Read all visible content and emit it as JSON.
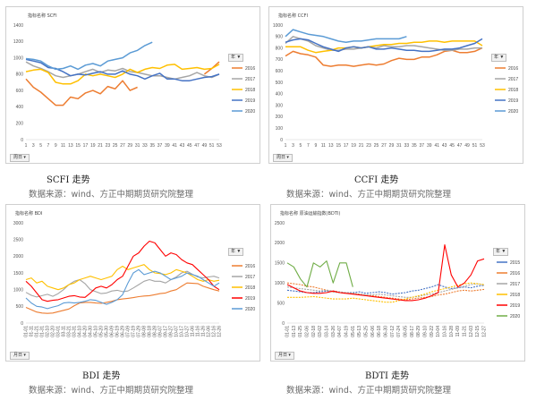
{
  "colors": {
    "2016": "#ed7d31",
    "2017": "#a5a5a5",
    "2018": "#ffc000",
    "2019": "#4472c4",
    "2020": "#5b9bd5",
    "2015": "#4472c4",
    "2020_bdti": "#70ad47",
    "2019_bdti": "#ff0000",
    "2019_bdi": "#ff0000"
  },
  "panels": [
    {
      "title": "指标名称 SCFI",
      "caption": "SCFI 走势",
      "source": "数据来源：wind、方正中期期货研究院整理",
      "period_label": "周日",
      "filter_label": "年",
      "yticks": [
        "1400",
        "1200",
        "1000",
        "800",
        "600",
        "400",
        "200",
        "0"
      ],
      "xticks": [
        "1",
        "3",
        "5",
        "7",
        "9",
        "11",
        "13",
        "15",
        "17",
        "19",
        "21",
        "23",
        "25",
        "27",
        "29",
        "31",
        "33",
        "35",
        "37",
        "39",
        "41",
        "43",
        "45",
        "47",
        "49",
        "51",
        "53"
      ],
      "legend": [
        "2016",
        "2017",
        "2018",
        "2019",
        "2020"
      ]
    },
    {
      "title": "指标名称 CCFI",
      "caption": "CCFI 走势",
      "source": "数据来源：wind、方正中期期货研究院整理",
      "period_label": "周日",
      "filter_label": "年",
      "yticks": [
        "1000",
        "900",
        "800",
        "700",
        "600",
        "500",
        "400",
        "300",
        "200",
        "100",
        "0"
      ],
      "xticks": [
        "1",
        "3",
        "5",
        "7",
        "9",
        "11",
        "13",
        "15",
        "17",
        "19",
        "21",
        "23",
        "25",
        "27",
        "29",
        "31",
        "33",
        "35",
        "37",
        "39",
        "41",
        "43",
        "45",
        "47",
        "49",
        "51",
        "53"
      ],
      "legend": [
        "2016",
        "2017",
        "2018",
        "2019",
        "2020"
      ]
    },
    {
      "title": "指标名称 BDI",
      "caption": "BDI 走势",
      "source": "数据来源：wind、方正中期期货研究院整理",
      "period_label": "月日",
      "filter_label": "年",
      "yticks": [
        "3000",
        "2500",
        "2000",
        "1500",
        "1000",
        "500",
        "0"
      ],
      "xticks": [
        "01-01",
        "01-11",
        "01-21",
        "01-31",
        "02-10",
        "02-20",
        "03-01",
        "03-11",
        "03-21",
        "03-31",
        "04-10",
        "04-20",
        "04-30",
        "05-10",
        "05-20",
        "05-30",
        "06-09",
        "06-19",
        "06-29",
        "07-09",
        "07-19",
        "07-29",
        "08-08",
        "08-18",
        "08-28",
        "09-07",
        "09-17",
        "09-27",
        "10-07",
        "10-17",
        "10-27",
        "11-06",
        "11-16",
        "11-26",
        "12-06",
        "12-16",
        "12-26"
      ],
      "legend": [
        "2016",
        "2017",
        "2018",
        "2019",
        "2020"
      ]
    },
    {
      "title": "指标名称 原油运输指数(BDTI)",
      "caption": "BDTI 走势",
      "source": "数据来源：wind、方正中期期货研究院整理",
      "period_label": "月日",
      "filter_label": "年",
      "yticks": [
        "2500",
        "2000",
        "1500",
        "1000",
        "500",
        "0"
      ],
      "xticks": [
        "01-01",
        "01-13",
        "01-25",
        "02-06",
        "02-18",
        "03-02",
        "03-14",
        "03-26",
        "04-07",
        "04-19",
        "05-01",
        "05-13",
        "05-25",
        "06-06",
        "06-18",
        "06-30",
        "07-12",
        "07-24",
        "08-05",
        "08-17",
        "08-29",
        "09-10",
        "09-22",
        "10-04",
        "10-16",
        "10-28",
        "11-09",
        "11-21",
        "12-03",
        "12-15",
        "12-27"
      ],
      "legend": [
        "2015",
        "2016",
        "2017",
        "2018",
        "2019",
        "2020"
      ]
    }
  ],
  "chart_data": [
    {
      "type": "line",
      "title": "",
      "xlabel": "",
      "ylabel": "",
      "ylim": [
        0,
        1400
      ],
      "x": [
        "1",
        "3",
        "5",
        "7",
        "9",
        "11",
        "13",
        "15",
        "17",
        "19",
        "21",
        "23",
        "25",
        "27",
        "29",
        "31",
        "33",
        "35",
        "37",
        "39",
        "41",
        "43",
        "45",
        "47",
        "49",
        "51",
        "53"
      ],
      "legend_position": "right",
      "series": [
        {
          "name": "2016",
          "values": [
            740,
            640,
            580,
            500,
            420,
            420,
            520,
            500,
            570,
            600,
            560,
            650,
            620,
            720,
            600,
            640,
            null,
            null,
            null,
            null,
            null,
            null,
            null,
            null,
            800,
            870,
            950
          ]
        },
        {
          "name": "2017",
          "values": [
            950,
            900,
            870,
            830,
            780,
            760,
            780,
            800,
            830,
            860,
            820,
            850,
            840,
            870,
            830,
            820,
            800,
            780,
            780,
            760,
            740,
            760,
            780,
            820,
            780,
            760,
            800
          ]
        },
        {
          "name": "2018",
          "values": [
            830,
            850,
            860,
            820,
            700,
            680,
            680,
            720,
            800,
            780,
            800,
            780,
            760,
            800,
            860,
            820,
            860,
            880,
            870,
            910,
            920,
            860,
            870,
            880,
            860,
            870,
            920
          ]
        },
        {
          "name": "2019",
          "values": [
            980,
            960,
            940,
            880,
            870,
            830,
            780,
            800,
            790,
            810,
            830,
            800,
            800,
            840,
            800,
            780,
            740,
            780,
            810,
            740,
            740,
            720,
            720,
            740,
            760,
            770,
            800
          ]
        },
        {
          "name": "2020",
          "values": [
            990,
            980,
            960,
            900,
            860,
            870,
            900,
            860,
            910,
            930,
            900,
            960,
            980,
            1000,
            1060,
            1090,
            1150,
            1190,
            null,
            null,
            null,
            null,
            null,
            null,
            null,
            null,
            null
          ]
        }
      ]
    },
    {
      "type": "line",
      "title": "",
      "xlabel": "",
      "ylabel": "",
      "ylim": [
        0,
        1000
      ],
      "x": [
        "1",
        "3",
        "5",
        "7",
        "9",
        "11",
        "13",
        "15",
        "17",
        "19",
        "21",
        "23",
        "25",
        "27",
        "29",
        "31",
        "33",
        "35",
        "37",
        "39",
        "41",
        "43",
        "45",
        "47",
        "49",
        "51",
        "53"
      ],
      "legend_position": "right",
      "series": [
        {
          "name": "2016",
          "values": [
            730,
            770,
            750,
            740,
            720,
            650,
            640,
            650,
            650,
            640,
            650,
            660,
            650,
            660,
            690,
            710,
            700,
            700,
            720,
            720,
            740,
            770,
            780,
            760,
            760,
            770,
            800
          ]
        },
        {
          "name": "2017",
          "values": [
            840,
            900,
            880,
            860,
            820,
            800,
            780,
            780,
            790,
            790,
            800,
            810,
            800,
            820,
            810,
            810,
            820,
            820,
            810,
            800,
            790,
            780,
            780,
            790,
            790,
            800,
            800
          ]
        },
        {
          "name": "2018",
          "values": [
            810,
            810,
            810,
            780,
            760,
            770,
            780,
            800,
            800,
            810,
            800,
            810,
            820,
            830,
            830,
            840,
            840,
            850,
            850,
            860,
            860,
            850,
            860,
            860,
            860,
            860,
            820
          ]
        },
        {
          "name": "2019",
          "values": [
            850,
            870,
            880,
            870,
            840,
            810,
            790,
            770,
            800,
            810,
            800,
            810,
            790,
            790,
            800,
            790,
            780,
            780,
            770,
            770,
            780,
            790,
            790,
            800,
            820,
            840,
            880
          ]
        },
        {
          "name": "2020",
          "values": [
            900,
            960,
            940,
            920,
            910,
            900,
            880,
            860,
            850,
            860,
            860,
            870,
            880,
            880,
            880,
            880,
            900,
            null,
            null,
            null,
            null,
            null,
            null,
            null,
            null,
            null,
            null
          ]
        }
      ]
    },
    {
      "type": "line",
      "title": "",
      "xlabel": "",
      "ylabel": "",
      "ylim": [
        0,
        3000
      ],
      "legend_position": "right",
      "series": [
        {
          "name": "2016",
          "values": [
            470,
            400,
            330,
            300,
            290,
            300,
            340,
            380,
            420,
            520,
            600,
            620,
            620,
            600,
            590,
            620,
            650,
            700,
            720,
            740,
            760,
            790,
            810,
            820,
            850,
            880,
            900,
            960,
            1000,
            1100,
            1200,
            1190,
            1180,
            1100,
            1050,
            1000,
            960
          ]
        },
        {
          "name": "2017",
          "values": [
            920,
            830,
            780,
            820,
            860,
            800,
            880,
            1000,
            1150,
            1250,
            1300,
            1180,
            1000,
            940,
            880,
            900,
            960,
            980,
            940,
            960,
            1050,
            1150,
            1250,
            1300,
            1250,
            1250,
            1200,
            1300,
            1380,
            1500,
            1550,
            1460,
            1380,
            1350,
            1380,
            1400,
            1350
          ]
        },
        {
          "name": "2018",
          "values": [
            1300,
            1350,
            1200,
            1250,
            1100,
            1050,
            1000,
            1050,
            1150,
            1200,
            1300,
            1350,
            1400,
            1350,
            1300,
            1350,
            1400,
            1600,
            1700,
            1600,
            1650,
            1700,
            1750,
            1600,
            1500,
            1480,
            1450,
            1500,
            1600,
            1550,
            1500,
            1400,
            1300,
            1250,
            1300,
            1250,
            1280
          ]
        },
        {
          "name": "2019",
          "values": [
            1250,
            1100,
            900,
            700,
            650,
            680,
            700,
            750,
            800,
            820,
            780,
            770,
            900,
            1050,
            1100,
            1050,
            1150,
            1300,
            1400,
            1700,
            2000,
            2100,
            2300,
            2450,
            2400,
            2200,
            2000,
            2100,
            2050,
            1900,
            1800,
            1750,
            1600,
            1450,
            1300,
            1100,
            1000
          ]
        },
        {
          "name": "2020",
          "values": [
            750,
            600,
            500,
            480,
            430,
            480,
            520,
            600,
            620,
            600,
            620,
            650,
            700,
            680,
            620,
            560,
            620,
            700,
            850,
            1200,
            1500,
            1600,
            1450,
            1500,
            1550,
            1500,
            1400,
            1300,
            1350,
            1400,
            1500,
            1450,
            1400,
            1300,
            1200,
            1100,
            1200
          ]
        }
      ]
    },
    {
      "type": "line",
      "title": "",
      "xlabel": "",
      "ylabel": "",
      "ylim": [
        0,
        2500
      ],
      "legend_position": "right",
      "series": [
        {
          "name": "2015",
          "values": [
            820,
            800,
            780,
            760,
            760,
            780,
            800,
            780,
            760,
            760,
            760,
            780,
            740,
            760,
            780,
            760,
            720,
            740,
            760,
            800,
            820,
            860,
            900,
            960,
            900,
            860,
            880,
            900,
            880,
            920,
            940
          ]
        },
        {
          "name": "2016",
          "values": [
            1000,
            980,
            960,
            920,
            900,
            860,
            820,
            780,
            760,
            740,
            740,
            720,
            700,
            680,
            660,
            640,
            620,
            600,
            580,
            600,
            620,
            640,
            660,
            700,
            720,
            760,
            800,
            820,
            800,
            820,
            840
          ]
        },
        {
          "name": "2017",
          "values": [
            900,
            880,
            860,
            840,
            820,
            800,
            820,
            800,
            780,
            760,
            740,
            720,
            700,
            700,
            720,
            700,
            680,
            660,
            640,
            640,
            660,
            700,
            720,
            760,
            800,
            840,
            880,
            920,
            960,
            980,
            940
          ]
        },
        {
          "name": "2018",
          "values": [
            640,
            640,
            640,
            650,
            660,
            640,
            620,
            600,
            600,
            600,
            620,
            600,
            580,
            560,
            540,
            520,
            520,
            560,
            600,
            640,
            680,
            720,
            780,
            820,
            860,
            900,
            940,
            980,
            1000,
            980,
            960
          ]
        },
        {
          "name": "2019",
          "values": [
            960,
            880,
            800,
            760,
            740,
            740,
            760,
            800,
            760,
            740,
            720,
            700,
            680,
            660,
            640,
            620,
            600,
            580,
            560,
            560,
            580,
            620,
            680,
            760,
            1950,
            1200,
            900,
            1000,
            1200,
            1550,
            1600
          ]
        },
        {
          "name": "2020",
          "values": [
            1500,
            1400,
            1100,
            900,
            1500,
            1400,
            1550,
            1000,
            1500,
            1500,
            900,
            null,
            null,
            null,
            null,
            null,
            null,
            null,
            null,
            null,
            null,
            null,
            null,
            null,
            null,
            null,
            null,
            null,
            null,
            null,
            null
          ]
        }
      ]
    }
  ]
}
